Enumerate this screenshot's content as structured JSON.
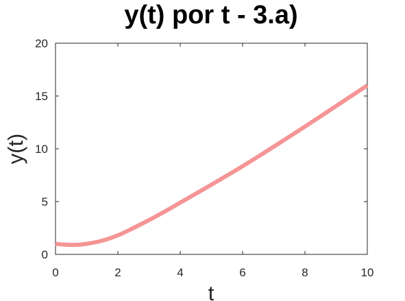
{
  "chart_data": {
    "type": "line",
    "title": "y(t) por t - 3.a)",
    "xlabel": "t",
    "ylabel": "y(t)",
    "xlim": [
      0,
      10
    ],
    "ylim": [
      0,
      20
    ],
    "xticks": [
      0,
      2,
      4,
      6,
      8,
      10
    ],
    "yticks": [
      0,
      5,
      10,
      15,
      20
    ],
    "grid": false,
    "legend": "none",
    "series": [
      {
        "color": "#f59595",
        "x": [
          0,
          0.25,
          0.5,
          0.75,
          1,
          1.5,
          2,
          2.5,
          3,
          3.5,
          4,
          5,
          6,
          7,
          8,
          9,
          10
        ],
        "y": [
          1.0,
          0.93,
          0.9,
          0.92,
          1.0,
          1.3,
          1.8,
          2.5,
          3.25,
          4.05,
          4.9,
          6.6,
          8.35,
          10.2,
          12.1,
          14.05,
          16.0
        ]
      }
    ]
  }
}
